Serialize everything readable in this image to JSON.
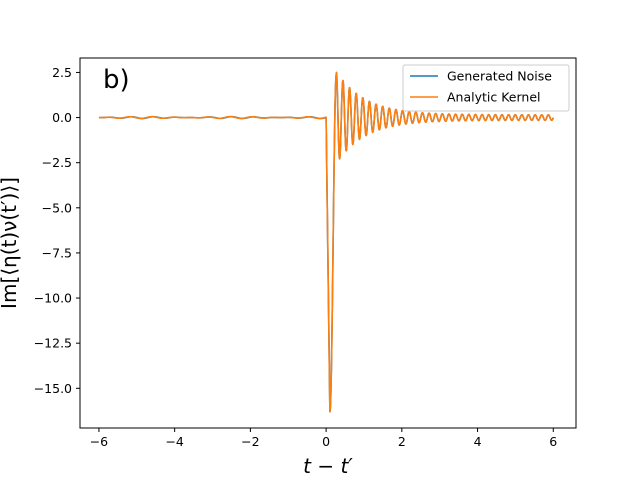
{
  "chart_data": {
    "type": "line",
    "panel_label": "b)",
    "xlabel": "t − t′",
    "ylabel": "Im[⟨η(t)ν(t′)⟩]",
    "xlim": [
      -6.5,
      6.6
    ],
    "ylim": [
      -17.2,
      3.3
    ],
    "xticks": [
      -6,
      -4,
      -2,
      0,
      2,
      4,
      6
    ],
    "xtick_labels": [
      "−6",
      "−4",
      "−2",
      "0",
      "2",
      "4",
      "6"
    ],
    "yticks": [
      2.5,
      0.0,
      -2.5,
      -5.0,
      -7.5,
      -10.0,
      -12.5,
      -15.0
    ],
    "ytick_labels": [
      "2.5",
      "0.0",
      "−2.5",
      "−5.0",
      "−7.5",
      "−10.0",
      "−12.5",
      "−15.0"
    ],
    "grid": false,
    "legend_position": "upper right",
    "series": [
      {
        "name": "Generated Noise",
        "color": "#1f77b4",
        "description_points": {
          "x": [
            -6,
            -0.05,
            0.0,
            0.05,
            0.1,
            0.2,
            0.27,
            0.35,
            0.45,
            0.55,
            0.65,
            6
          ],
          "y": [
            0.0,
            0.0,
            0.0,
            -8.0,
            -16.3,
            -6.0,
            2.4,
            -2.0,
            1.6,
            -1.6,
            1.3,
            0.1
          ]
        }
      },
      {
        "name": "Analytic Kernel",
        "color": "#ff7f0e",
        "description_points": {
          "x": [
            -6,
            -0.05,
            0.0,
            0.05,
            0.1,
            0.2,
            0.27,
            0.35,
            0.45,
            0.55,
            0.65,
            6
          ],
          "y": [
            0.0,
            0.0,
            0.0,
            -8.0,
            -16.3,
            -6.0,
            2.4,
            -2.0,
            1.6,
            -1.6,
            1.3,
            0.1
          ]
        }
      }
    ]
  }
}
